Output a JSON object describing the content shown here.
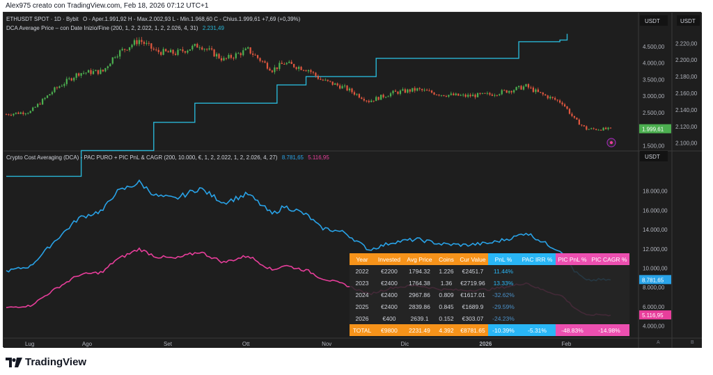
{
  "header": {
    "text": "Alex975 creato con TradingView.com, Feb 18, 2026 07:12 UTC+1"
  },
  "footer": {
    "logo_text": "TradingView"
  },
  "colors": {
    "background": "#1e1e1e",
    "candle_up": "#4caf50",
    "candle_down": "#e0573f",
    "dca_line": "#29b6d6",
    "pnl_blue": "#29a3e8",
    "pic_pink": "#e83e9b",
    "table_orange": "#f7931a",
    "table_blue": "#29b6f6",
    "table_pink": "#ec4fb0"
  },
  "chart_data": [
    {
      "type": "candlestick",
      "legend": {
        "symbol": "ETHUSDT SPOT · 1D · Bybit",
        "ohlc_text": "O - Aper.1.991,92  H - Max.2.002,93  L - Min.1.968,60  C - Chius.1.999,61  +7,69 (+0,39%)",
        "indicator_label": "DCA Average Price – con Date Inizio/Fine (200, 1, 2, 2.022, 1, 2, 2.026, 4, 31)",
        "indicator_value": "2.231,49"
      },
      "x_ticks": [
        "Lug",
        "Ago",
        "Set",
        "Ott",
        "Nov",
        "Dic",
        "2026",
        "Feb"
      ],
      "x_range": [
        "2025-07-01",
        "2026-02-18"
      ],
      "y_axis_ticks": [
        "4.500,00",
        "4.000,00",
        "3.500,00",
        "3.000,00",
        "2.500,00",
        "2.000,00",
        "1.500,00"
      ],
      "y_tick_values": [
        4500,
        4000,
        3500,
        3000,
        2500,
        2000,
        1500
      ],
      "ylim": [
        1400,
        4900
      ],
      "right_axis_ticks": [
        "2.220,00",
        "2.200,00",
        "2.180,00",
        "2.160,00",
        "2.140,00",
        "2.120,00",
        "2.100,00"
      ],
      "right_tick_values": [
        2220,
        2200,
        2180,
        2160,
        2140,
        2120,
        2100
      ],
      "right_ylim": [
        2093,
        2232
      ],
      "axis_unit": "USDT",
      "price_label": "1.999,61",
      "close_anchors": [
        {
          "t": 0,
          "v": 2450
        },
        {
          "t": 10,
          "v": 2530
        },
        {
          "t": 20,
          "v": 3200
        },
        {
          "t": 30,
          "v": 3700
        },
        {
          "t": 40,
          "v": 3750
        },
        {
          "t": 45,
          "v": 4250
        },
        {
          "t": 55,
          "v": 4700
        },
        {
          "t": 62,
          "v": 4350
        },
        {
          "t": 70,
          "v": 4300
        },
        {
          "t": 80,
          "v": 4550
        },
        {
          "t": 90,
          "v": 4100
        },
        {
          "t": 100,
          "v": 4400
        },
        {
          "t": 110,
          "v": 3800
        },
        {
          "t": 115,
          "v": 4000
        },
        {
          "t": 120,
          "v": 3900
        },
        {
          "t": 125,
          "v": 3800
        },
        {
          "t": 130,
          "v": 3500
        },
        {
          "t": 140,
          "v": 3250
        },
        {
          "t": 150,
          "v": 2850
        },
        {
          "t": 160,
          "v": 3100
        },
        {
          "t": 170,
          "v": 3200
        },
        {
          "t": 180,
          "v": 3050
        },
        {
          "t": 190,
          "v": 3000
        },
        {
          "t": 200,
          "v": 3050
        },
        {
          "t": 210,
          "v": 3200
        },
        {
          "t": 215,
          "v": 3300
        },
        {
          "t": 220,
          "v": 3100
        },
        {
          "t": 225,
          "v": 2950
        },
        {
          "t": 230,
          "v": 2800
        },
        {
          "t": 235,
          "v": 2300
        },
        {
          "t": 240,
          "v": 2000
        },
        {
          "t": 245,
          "v": 2000
        },
        {
          "t": 250,
          "v": 2000
        }
      ],
      "dca_steps": [
        {
          "t": 0,
          "v": 2060
        },
        {
          "t": 31,
          "v": 2091
        },
        {
          "t": 61,
          "v": 2125
        },
        {
          "t": 78,
          "v": 2148
        },
        {
          "t": 112,
          "v": 2170
        },
        {
          "t": 124,
          "v": 2180
        },
        {
          "t": 153,
          "v": 2202
        },
        {
          "t": 212,
          "v": 2222
        },
        {
          "t": 229,
          "v": 2224
        },
        {
          "t": 232,
          "v": 2231.49
        }
      ]
    },
    {
      "type": "line",
      "legend": {
        "label": "Crypto Cost Averaging (DCA) - PAC PURO + PIC PnL & CAGR (200, 10.000, €, 1, 2, 2.022, 1, 2, 2.026, 4, 27)",
        "value_1": "8.781,65",
        "value_2": "5.116,95"
      },
      "y_axis_ticks": [
        "18.000,00",
        "16.000,00",
        "14.000,00",
        "12.000,00",
        "10.000,00",
        "8.000,00",
        "6.000,00",
        "4.000,00"
      ],
      "y_tick_values": [
        18000,
        16000,
        14000,
        12000,
        10000,
        8000,
        6000,
        4000
      ],
      "ylim": [
        2600,
        20500
      ],
      "axis_unit": "USDT",
      "last_value_labels": [
        "8.781,65",
        "5.116,95"
      ],
      "series": [
        {
          "key": "pnl",
          "color": "#29a3e8",
          "points": [
            {
              "t": 0,
              "v": 9700
            },
            {
              "t": 10,
              "v": 10200
            },
            {
              "t": 20,
              "v": 12800
            },
            {
              "t": 30,
              "v": 15200
            },
            {
              "t": 40,
              "v": 16000
            },
            {
              "t": 45,
              "v": 17800
            },
            {
              "t": 55,
              "v": 18900
            },
            {
              "t": 62,
              "v": 17500
            },
            {
              "t": 70,
              "v": 17200
            },
            {
              "t": 80,
              "v": 18300
            },
            {
              "t": 90,
              "v": 16800
            },
            {
              "t": 100,
              "v": 17700
            },
            {
              "t": 110,
              "v": 15600
            },
            {
              "t": 115,
              "v": 16400
            },
            {
              "t": 120,
              "v": 16000
            },
            {
              "t": 125,
              "v": 15400
            },
            {
              "t": 130,
              "v": 14200
            },
            {
              "t": 140,
              "v": 13700
            },
            {
              "t": 150,
              "v": 11900
            },
            {
              "t": 160,
              "v": 12700
            },
            {
              "t": 170,
              "v": 13000
            },
            {
              "t": 180,
              "v": 12500
            },
            {
              "t": 190,
              "v": 12400
            },
            {
              "t": 200,
              "v": 12600
            },
            {
              "t": 210,
              "v": 13200
            },
            {
              "t": 215,
              "v": 13700
            },
            {
              "t": 220,
              "v": 13000
            },
            {
              "t": 225,
              "v": 12300
            },
            {
              "t": 230,
              "v": 11700
            },
            {
              "t": 235,
              "v": 9700
            },
            {
              "t": 240,
              "v": 8700
            },
            {
              "t": 245,
              "v": 8800
            },
            {
              "t": 250,
              "v": 8781.65
            }
          ]
        },
        {
          "key": "pic",
          "color": "#e83e9b",
          "points": [
            {
              "t": 0,
              "v": 5900
            },
            {
              "t": 10,
              "v": 6100
            },
            {
              "t": 20,
              "v": 7800
            },
            {
              "t": 30,
              "v": 9300
            },
            {
              "t": 40,
              "v": 9600
            },
            {
              "t": 45,
              "v": 10800
            },
            {
              "t": 55,
              "v": 12000
            },
            {
              "t": 62,
              "v": 11200
            },
            {
              "t": 70,
              "v": 11000
            },
            {
              "t": 80,
              "v": 11700
            },
            {
              "t": 90,
              "v": 10600
            },
            {
              "t": 100,
              "v": 11300
            },
            {
              "t": 110,
              "v": 9800
            },
            {
              "t": 115,
              "v": 10300
            },
            {
              "t": 120,
              "v": 10000
            },
            {
              "t": 125,
              "v": 9700
            },
            {
              "t": 130,
              "v": 9000
            },
            {
              "t": 140,
              "v": 8300
            },
            {
              "t": 150,
              "v": 7300
            },
            {
              "t": 160,
              "v": 8000
            },
            {
              "t": 170,
              "v": 8200
            },
            {
              "t": 180,
              "v": 7800
            },
            {
              "t": 190,
              "v": 7700
            },
            {
              "t": 200,
              "v": 7800
            },
            {
              "t": 210,
              "v": 8200
            },
            {
              "t": 215,
              "v": 8500
            },
            {
              "t": 220,
              "v": 7900
            },
            {
              "t": 225,
              "v": 7500
            },
            {
              "t": 230,
              "v": 7100
            },
            {
              "t": 235,
              "v": 5900
            },
            {
              "t": 240,
              "v": 5100
            },
            {
              "t": 245,
              "v": 5200
            },
            {
              "t": 250,
              "v": 5116.95
            }
          ]
        }
      ]
    },
    {
      "type": "table",
      "columns": [
        "Year",
        "Invested",
        "Avg Price",
        "Coins",
        "Cur Value",
        "PnL %",
        "PAC IRR %",
        "PIC PnL %",
        "PIC CAGR %"
      ],
      "column_colors": [
        "#f7931a",
        "#f7931a",
        "#f7931a",
        "#f7931a",
        "#f7931a",
        "#29b6f6",
        "#29b6f6",
        "#ec4fb0",
        "#ec4fb0"
      ],
      "rows": [
        [
          "2022",
          "€2200",
          "1794.32",
          "1.226",
          "€2451.7",
          "11.44%",
          "",
          "",
          ""
        ],
        [
          "2023",
          "€2400",
          "1764.38",
          "1.36",
          "€2719.96",
          "13.33%",
          "",
          "",
          ""
        ],
        [
          "2024",
          "€2400",
          "2967.86",
          "0.809",
          "€1617.01",
          "-32.62%",
          "",
          "",
          ""
        ],
        [
          "2025",
          "€2400",
          "2839.86",
          "0.845",
          "€1689.9",
          "-29.59%",
          "",
          "",
          ""
        ],
        [
          "2026",
          "€400",
          "2639.1",
          "0.152",
          "€303.07",
          "-24.23%",
          "",
          "",
          ""
        ]
      ],
      "total_row": [
        "TOTAL",
        "€9800",
        "2231.49",
        "4.392",
        "€8781.65",
        "-10.39%",
        "-5.31%",
        "-48.83%",
        "-14.98%"
      ]
    }
  ],
  "scale_buttons": [
    "A",
    "B"
  ]
}
